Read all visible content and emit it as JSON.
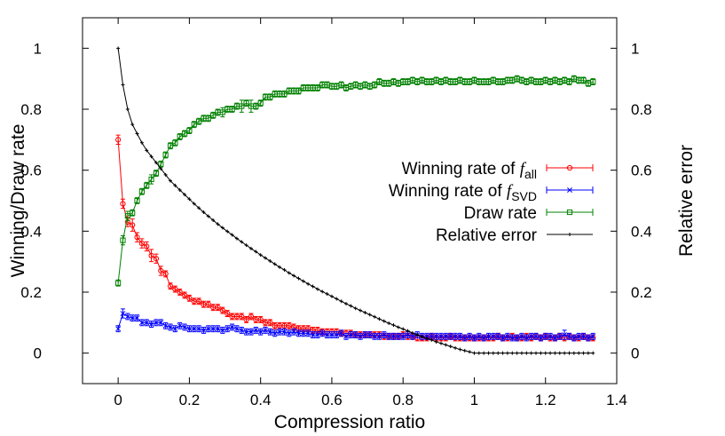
{
  "chart_data": {
    "type": "line",
    "xlabel": "Compression ratio",
    "ylabel_left": "Winning/Draw rate",
    "ylabel_right": "Relative error",
    "xlim": [
      -0.1,
      1.4
    ],
    "ylim": [
      -0.1,
      1.1
    ],
    "x_ticks": [
      "0",
      "0.2",
      "0.4",
      "0.6",
      "0.8",
      "1",
      "1.2",
      "1.4"
    ],
    "y_ticks_left": [
      "0",
      "0.2",
      "0.4",
      "0.6",
      "0.8",
      "1"
    ],
    "y_ticks_right": [
      "0",
      "0.2",
      "0.4",
      "0.6",
      "0.8",
      "1"
    ],
    "legend_position": "right",
    "x": [
      0.0,
      0.0133,
      0.0267,
      0.04,
      0.0533,
      0.0667,
      0.08,
      0.0933,
      0.1067,
      0.12,
      0.1333,
      0.1467,
      0.16,
      0.1733,
      0.1867,
      0.2,
      0.2133,
      0.2267,
      0.24,
      0.2533,
      0.2667,
      0.28,
      0.2933,
      0.3067,
      0.32,
      0.3333,
      0.3467,
      0.36,
      0.3733,
      0.3867,
      0.4,
      0.4133,
      0.4267,
      0.44,
      0.4533,
      0.4667,
      0.48,
      0.4933,
      0.5067,
      0.52,
      0.5333,
      0.5467,
      0.56,
      0.5733,
      0.5867,
      0.6,
      0.6133,
      0.6267,
      0.64,
      0.6533,
      0.6667,
      0.68,
      0.6933,
      0.7067,
      0.72,
      0.7333,
      0.7467,
      0.76,
      0.7733,
      0.7867,
      0.8,
      0.8133,
      0.8267,
      0.84,
      0.8533,
      0.8667,
      0.88,
      0.8933,
      0.9067,
      0.92,
      0.9333,
      0.9467,
      0.96,
      0.9733,
      0.9867,
      1.0,
      1.0133,
      1.0267,
      1.04,
      1.0533,
      1.0667,
      1.08,
      1.0933,
      1.1067,
      1.12,
      1.1333,
      1.1467,
      1.16,
      1.1733,
      1.1867,
      1.2,
      1.2133,
      1.2267,
      1.24,
      1.2533,
      1.2667,
      1.28,
      1.2933,
      1.3067,
      1.32,
      1.3333
    ],
    "series": [
      {
        "name": "Winning rate of f_all",
        "label_prefix": "Winning rate of ",
        "label_italic": "f",
        "label_subscript": "all",
        "color": "#ff0000",
        "marker": "circle",
        "values": [
          0.7,
          0.49,
          0.43,
          0.42,
          0.38,
          0.36,
          0.35,
          0.32,
          0.31,
          0.27,
          0.26,
          0.22,
          0.21,
          0.2,
          0.19,
          0.18,
          0.17,
          0.17,
          0.16,
          0.16,
          0.15,
          0.15,
          0.14,
          0.13,
          0.12,
          0.12,
          0.12,
          0.11,
          0.12,
          0.11,
          0.11,
          0.1,
          0.1,
          0.09,
          0.09,
          0.09,
          0.09,
          0.085,
          0.08,
          0.08,
          0.08,
          0.075,
          0.075,
          0.07,
          0.07,
          0.07,
          0.07,
          0.065,
          0.065,
          0.065,
          0.06,
          0.06,
          0.06,
          0.06,
          0.06,
          0.06,
          0.055,
          0.055,
          0.055,
          0.055,
          0.06,
          0.055,
          0.055,
          0.05,
          0.05,
          0.05,
          0.055,
          0.05,
          0.05,
          0.05,
          0.055,
          0.05,
          0.05,
          0.05,
          0.05,
          0.05,
          0.05,
          0.05,
          0.05,
          0.05,
          0.055,
          0.05,
          0.05,
          0.055,
          0.05,
          0.05,
          0.055,
          0.05,
          0.055,
          0.05,
          0.055,
          0.05,
          0.05,
          0.055,
          0.05,
          0.055,
          0.05,
          0.05,
          0.055,
          0.05,
          0.05
        ],
        "errors": [
          0.015,
          0.015,
          0.015,
          0.02,
          0.015,
          0.015,
          0.015,
          0.02,
          0.015,
          0.015,
          0.01,
          0.01,
          0.01,
          0.01,
          0.01,
          0.01,
          0.01,
          0.01,
          0.01,
          0.01,
          0.01,
          0.01,
          0.01,
          0.01,
          0.01,
          0.01,
          0.01,
          0.01,
          0.01,
          0.01,
          0.01,
          0.01,
          0.01,
          0.01,
          0.01,
          0.01,
          0.01,
          0.01,
          0.01,
          0.01,
          0.01,
          0.01,
          0.01,
          0.01,
          0.01,
          0.01,
          0.01,
          0.01,
          0.01,
          0.01,
          0.01,
          0.01,
          0.01,
          0.01,
          0.01,
          0.01,
          0.01,
          0.01,
          0.01,
          0.01,
          0.01,
          0.01,
          0.01,
          0.01,
          0.01,
          0.01,
          0.01,
          0.01,
          0.01,
          0.01,
          0.01,
          0.01,
          0.01,
          0.01,
          0.01,
          0.01,
          0.01,
          0.01,
          0.01,
          0.01,
          0.01,
          0.01,
          0.01,
          0.01,
          0.01,
          0.01,
          0.01,
          0.01,
          0.01,
          0.01,
          0.01,
          0.01,
          0.01,
          0.01,
          0.01,
          0.01,
          0.01,
          0.01,
          0.01,
          0.01,
          0.01
        ]
      },
      {
        "name": "Winning rate of f_SVD",
        "label_prefix": "Winning rate of ",
        "label_italic": "f",
        "label_subscript": "SVD",
        "color": "#0000ff",
        "marker": "x",
        "values": [
          0.08,
          0.13,
          0.12,
          0.115,
          0.115,
          0.1,
          0.1,
          0.095,
          0.1,
          0.1,
          0.09,
          0.085,
          0.08,
          0.09,
          0.085,
          0.08,
          0.08,
          0.08,
          0.075,
          0.08,
          0.08,
          0.08,
          0.075,
          0.08,
          0.085,
          0.08,
          0.075,
          0.07,
          0.07,
          0.075,
          0.07,
          0.075,
          0.07,
          0.065,
          0.07,
          0.07,
          0.065,
          0.07,
          0.065,
          0.065,
          0.065,
          0.06,
          0.06,
          0.065,
          0.06,
          0.06,
          0.06,
          0.065,
          0.055,
          0.06,
          0.06,
          0.055,
          0.06,
          0.06,
          0.055,
          0.055,
          0.06,
          0.055,
          0.055,
          0.055,
          0.055,
          0.06,
          0.055,
          0.06,
          0.055,
          0.055,
          0.055,
          0.055,
          0.055,
          0.055,
          0.055,
          0.055,
          0.055,
          0.05,
          0.055,
          0.05,
          0.055,
          0.05,
          0.055,
          0.055,
          0.055,
          0.05,
          0.055,
          0.05,
          0.05,
          0.055,
          0.05,
          0.055,
          0.055,
          0.05,
          0.055,
          0.055,
          0.05,
          0.055,
          0.06,
          0.055,
          0.05,
          0.055,
          0.055,
          0.05,
          0.055
        ],
        "errors": [
          0.01,
          0.015,
          0.01,
          0.01,
          0.01,
          0.01,
          0.01,
          0.01,
          0.01,
          0.01,
          0.01,
          0.01,
          0.01,
          0.01,
          0.01,
          0.01,
          0.01,
          0.01,
          0.01,
          0.01,
          0.01,
          0.01,
          0.01,
          0.01,
          0.01,
          0.01,
          0.01,
          0.01,
          0.01,
          0.01,
          0.01,
          0.01,
          0.01,
          0.01,
          0.01,
          0.01,
          0.01,
          0.01,
          0.01,
          0.01,
          0.01,
          0.01,
          0.01,
          0.01,
          0.01,
          0.01,
          0.01,
          0.01,
          0.01,
          0.01,
          0.01,
          0.01,
          0.01,
          0.01,
          0.01,
          0.01,
          0.01,
          0.01,
          0.01,
          0.01,
          0.01,
          0.01,
          0.01,
          0.01,
          0.01,
          0.01,
          0.01,
          0.01,
          0.01,
          0.01,
          0.01,
          0.01,
          0.01,
          0.01,
          0.01,
          0.01,
          0.01,
          0.01,
          0.01,
          0.01,
          0.01,
          0.01,
          0.01,
          0.01,
          0.01,
          0.01,
          0.01,
          0.01,
          0.01,
          0.01,
          0.01,
          0.01,
          0.01,
          0.01,
          0.015,
          0.01,
          0.01,
          0.01,
          0.01,
          0.01,
          0.01
        ]
      },
      {
        "name": "Draw rate",
        "label_prefix": "Draw rate",
        "label_italic": "",
        "label_subscript": "",
        "color": "#008000",
        "marker": "square",
        "values": [
          0.23,
          0.37,
          0.45,
          0.46,
          0.5,
          0.53,
          0.55,
          0.57,
          0.59,
          0.62,
          0.65,
          0.68,
          0.69,
          0.71,
          0.72,
          0.73,
          0.75,
          0.76,
          0.77,
          0.77,
          0.78,
          0.79,
          0.79,
          0.8,
          0.8,
          0.81,
          0.81,
          0.82,
          0.81,
          0.81,
          0.82,
          0.84,
          0.84,
          0.85,
          0.85,
          0.85,
          0.86,
          0.86,
          0.86,
          0.87,
          0.87,
          0.87,
          0.87,
          0.88,
          0.88,
          0.875,
          0.875,
          0.88,
          0.87,
          0.875,
          0.88,
          0.875,
          0.88,
          0.875,
          0.88,
          0.89,
          0.885,
          0.885,
          0.89,
          0.885,
          0.89,
          0.89,
          0.895,
          0.89,
          0.895,
          0.89,
          0.89,
          0.895,
          0.89,
          0.895,
          0.89,
          0.89,
          0.895,
          0.89,
          0.89,
          0.895,
          0.89,
          0.89,
          0.89,
          0.895,
          0.89,
          0.89,
          0.895,
          0.895,
          0.9,
          0.895,
          0.89,
          0.895,
          0.89,
          0.89,
          0.895,
          0.89,
          0.895,
          0.89,
          0.895,
          0.89,
          0.9,
          0.895,
          0.895,
          0.885,
          0.89
        ],
        "errors": [
          0.01,
          0.015,
          0.015,
          0.01,
          0.01,
          0.01,
          0.01,
          0.015,
          0.01,
          0.01,
          0.01,
          0.01,
          0.01,
          0.01,
          0.01,
          0.01,
          0.01,
          0.01,
          0.01,
          0.01,
          0.01,
          0.01,
          0.015,
          0.01,
          0.01,
          0.01,
          0.02,
          0.01,
          0.02,
          0.01,
          0.01,
          0.01,
          0.01,
          0.01,
          0.01,
          0.01,
          0.01,
          0.01,
          0.01,
          0.01,
          0.01,
          0.01,
          0.01,
          0.01,
          0.01,
          0.01,
          0.01,
          0.01,
          0.01,
          0.01,
          0.01,
          0.01,
          0.01,
          0.01,
          0.01,
          0.01,
          0.01,
          0.01,
          0.01,
          0.01,
          0.01,
          0.01,
          0.01,
          0.01,
          0.01,
          0.01,
          0.01,
          0.01,
          0.01,
          0.01,
          0.01,
          0.01,
          0.01,
          0.01,
          0.01,
          0.01,
          0.01,
          0.01,
          0.01,
          0.01,
          0.01,
          0.01,
          0.01,
          0.01,
          0.01,
          0.01,
          0.01,
          0.01,
          0.01,
          0.01,
          0.01,
          0.01,
          0.01,
          0.01,
          0.01,
          0.01,
          0.01,
          0.01,
          0.01,
          0.01,
          0.01
        ]
      },
      {
        "name": "Relative error",
        "label_prefix": "Relative error",
        "label_italic": "",
        "label_subscript": "",
        "color": "#000000",
        "marker": "plus",
        "axis": "right",
        "values": [
          1.0,
          0.88,
          0.8,
          0.75,
          0.72,
          0.69,
          0.665,
          0.645,
          0.625,
          0.605,
          0.585,
          0.565,
          0.55,
          0.535,
          0.52,
          0.505,
          0.49,
          0.476,
          0.462,
          0.449,
          0.436,
          0.423,
          0.411,
          0.399,
          0.388,
          0.376,
          0.365,
          0.354,
          0.343,
          0.333,
          0.322,
          0.312,
          0.302,
          0.292,
          0.282,
          0.273,
          0.263,
          0.254,
          0.245,
          0.236,
          0.227,
          0.219,
          0.21,
          0.202,
          0.194,
          0.186,
          0.178,
          0.17,
          0.162,
          0.155,
          0.147,
          0.14,
          0.133,
          0.126,
          0.119,
          0.112,
          0.105,
          0.098,
          0.092,
          0.085,
          0.079,
          0.073,
          0.066,
          0.06,
          0.054,
          0.048,
          0.043,
          0.037,
          0.032,
          0.027,
          0.022,
          0.017,
          0.012,
          0.008,
          0.004,
          0.0,
          0.0,
          0.0,
          0.0,
          0.0,
          0.0,
          0.0,
          0.0,
          0.0,
          0.0,
          0.0,
          0.0,
          0.0,
          0.0,
          0.0,
          0.0,
          0.0,
          0.0,
          0.0,
          0.0,
          0.0,
          0.0,
          0.0,
          0.0,
          0.0,
          0.0
        ]
      }
    ]
  }
}
